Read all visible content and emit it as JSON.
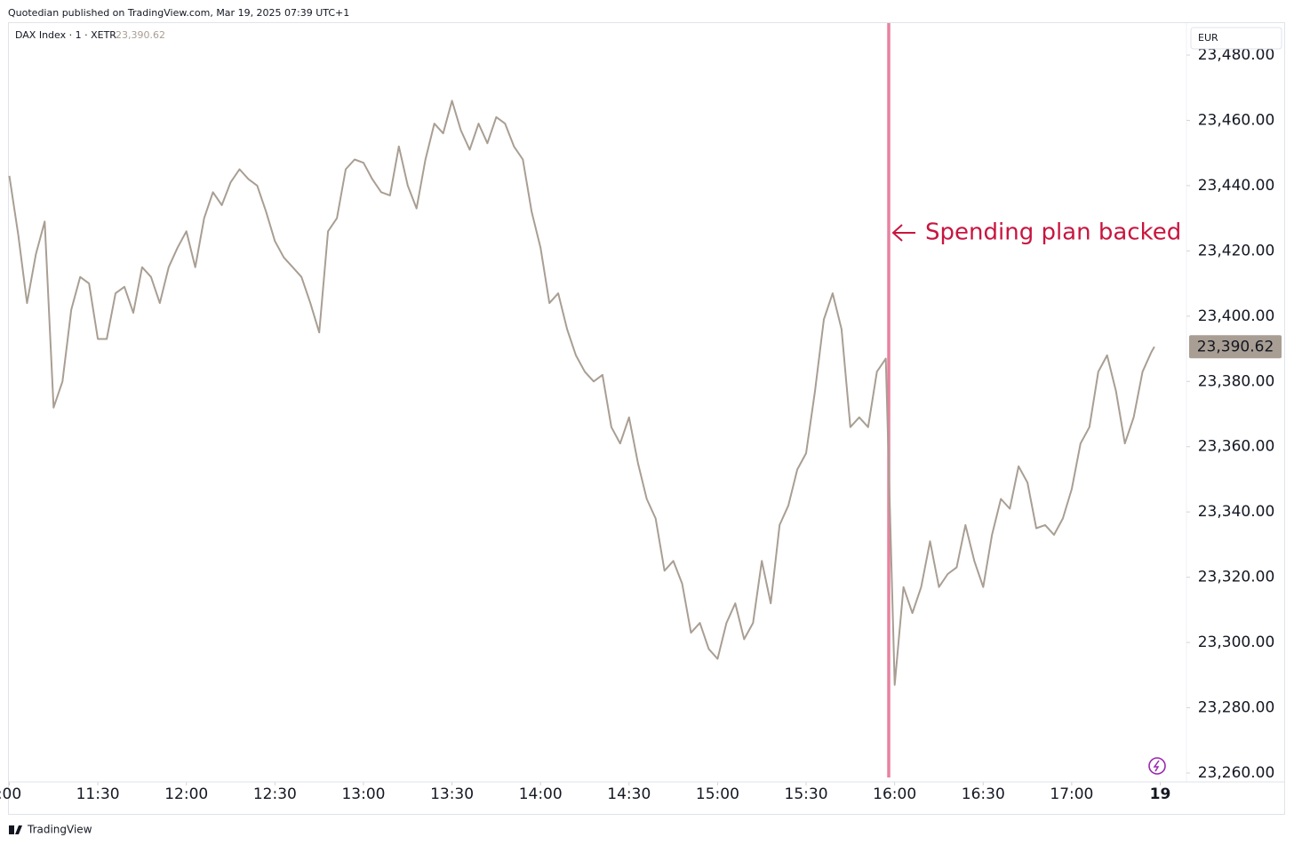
{
  "header": {
    "publisher": "Quotedian published on TradingView.com, Mar 19, 2025 07:39 UTC+1",
    "brand": "TradingView"
  },
  "chart_data": {
    "type": "line",
    "currency": "EUR",
    "x": [
      "11:00",
      "11:03",
      "11:06",
      "11:09",
      "11:12",
      "11:15",
      "11:18",
      "11:21",
      "11:24",
      "11:27",
      "11:30",
      "11:33",
      "11:36",
      "11:39",
      "11:42",
      "11:45",
      "11:48",
      "11:51",
      "11:54",
      "11:57",
      "12:00",
      "12:03",
      "12:06",
      "12:09",
      "12:12",
      "12:15",
      "12:18",
      "12:21",
      "12:24",
      "12:27",
      "12:30",
      "12:33",
      "12:36",
      "12:39",
      "12:42",
      "12:45",
      "12:48",
      "12:51",
      "12:54",
      "12:57",
      "13:00",
      "13:03",
      "13:06",
      "13:09",
      "13:12",
      "13:15",
      "13:18",
      "13:21",
      "13:24",
      "13:27",
      "13:30",
      "13:33",
      "13:36",
      "13:39",
      "13:42",
      "13:45",
      "13:48",
      "13:51",
      "13:54",
      "13:57",
      "14:00",
      "14:03",
      "14:06",
      "14:09",
      "14:12",
      "14:15",
      "14:18",
      "14:21",
      "14:24",
      "14:27",
      "14:30",
      "14:33",
      "14:36",
      "14:39",
      "14:42",
      "14:45",
      "14:48",
      "14:51",
      "14:54",
      "14:57",
      "15:00",
      "15:03",
      "15:06",
      "15:09",
      "15:12",
      "15:15",
      "15:18",
      "15:21",
      "15:24",
      "15:27",
      "15:30",
      "15:33",
      "15:36",
      "15:39",
      "15:42",
      "15:45",
      "15:48",
      "15:51",
      "15:54",
      "15:57",
      "16:00",
      "16:03",
      "16:06",
      "16:09",
      "16:12",
      "16:15",
      "16:18",
      "16:21",
      "16:24",
      "16:27",
      "16:30",
      "16:33",
      "16:36",
      "16:39",
      "16:42",
      "16:45",
      "16:48",
      "16:51",
      "16:54",
      "16:57",
      "17:00",
      "17:03",
      "17:06",
      "17:09",
      "17:12",
      "17:15",
      "17:18",
      "17:21",
      "17:24",
      "17:27",
      "17:28"
    ],
    "series": [
      {
        "name": "DAX Index · 1 · XETR",
        "color": "#a99e93",
        "values": [
          23443,
          23425,
          23404,
          23419,
          23429,
          23372,
          23380,
          23402,
          23412,
          23410,
          23393,
          23393,
          23407,
          23409,
          23401,
          23415,
          23412,
          23404,
          23415,
          23421,
          23426,
          23415,
          23430,
          23438,
          23434,
          23441,
          23445,
          23442,
          23440,
          23432,
          23423,
          23418,
          23415,
          23412,
          23404,
          23395,
          23426,
          23430,
          23445,
          23448,
          23447,
          23442,
          23438,
          23437,
          23452,
          23440,
          23433,
          23448,
          23459,
          23456,
          23466,
          23457,
          23451,
          23459,
          23453,
          23461,
          23459,
          23452,
          23448,
          23432,
          23421,
          23404,
          23407,
          23396,
          23388,
          23383,
          23380,
          23382,
          23366,
          23361,
          23369,
          23355,
          23344,
          23338,
          23322,
          23325,
          23318,
          23303,
          23306,
          23298,
          23295,
          23306,
          23312,
          23301,
          23306,
          23325,
          23312,
          23336,
          23342,
          23353,
          23358,
          23377,
          23399,
          23407,
          23396,
          23366,
          23369,
          23366,
          23383,
          23387,
          23287,
          23317,
          23309,
          23317,
          23331,
          23317,
          23321,
          23323,
          23336,
          23325,
          23317,
          23333,
          23344,
          23341,
          23354,
          23349,
          23335,
          23336,
          23333,
          23338,
          23347,
          23361,
          23366,
          23383,
          23388,
          23377,
          23361,
          23369,
          23383,
          23389,
          23390.62
        ]
      }
    ],
    "price_tag": {
      "value": 23390.62,
      "label": "23,390.62"
    },
    "xlim": [
      "11:00",
      "17:30"
    ],
    "xticks": [
      {
        "value": "11:00",
        "label": ":00"
      },
      "11:30",
      "12:00",
      "12:30",
      "13:00",
      "13:30",
      "14:00",
      "14:30",
      "15:00",
      "15:30",
      "16:00",
      "16:30",
      "17:00",
      {
        "value": "17:30",
        "label": "19"
      }
    ],
    "ylim": [
      23260,
      23480
    ],
    "yticks": [
      {
        "value": 23260,
        "label": "23,260.00"
      },
      {
        "value": 23280,
        "label": "23,280.00"
      },
      {
        "value": 23300,
        "label": "23,300.00"
      },
      {
        "value": 23320,
        "label": "23,320.00"
      },
      {
        "value": 23340,
        "label": "23,340.00"
      },
      {
        "value": 23360,
        "label": "23,360.00"
      },
      {
        "value": 23380,
        "label": "23,380.00"
      },
      {
        "value": 23400,
        "label": "23,400.00"
      },
      {
        "value": 23420,
        "label": "23,420.00"
      },
      {
        "value": 23440,
        "label": "23,440.00"
      },
      {
        "value": 23460,
        "label": "23,460.00"
      },
      {
        "value": 23480,
        "label": "23,480.00"
      }
    ],
    "annotation": {
      "text": "Spending plan backed",
      "x": "15:58",
      "color": "#c8153f",
      "line_color": "#e8829f"
    }
  }
}
